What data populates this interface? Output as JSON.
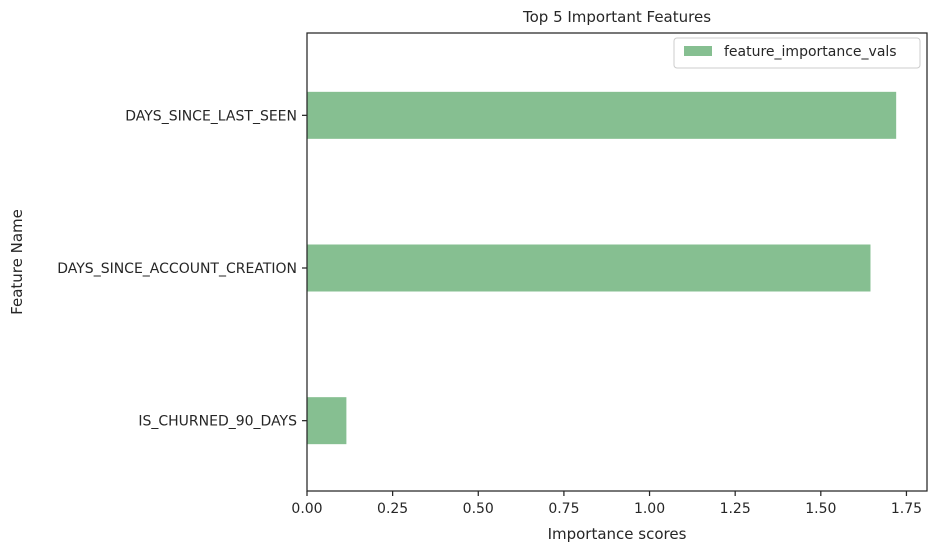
{
  "chart_data": {
    "type": "bar",
    "orientation": "horizontal",
    "title": "Top 5 Important Features",
    "xlabel": "Importance scores",
    "ylabel": "Feature Name",
    "categories": [
      "DAYS_SINCE_LAST_SEEN",
      "DAYS_SINCE_ACCOUNT_CREATION",
      "IS_CHURNED_90_DAYS"
    ],
    "series": [
      {
        "name": "feature_importance_vals",
        "values": [
          1.72,
          1.645,
          0.115
        ],
        "color": "#86bf91"
      }
    ],
    "xlim": [
      0,
      1.81
    ],
    "xticks": [
      "0.00",
      "0.25",
      "0.50",
      "0.75",
      "1.00",
      "1.25",
      "1.50",
      "1.75"
    ],
    "grid": false,
    "legend_position": "top-right"
  }
}
